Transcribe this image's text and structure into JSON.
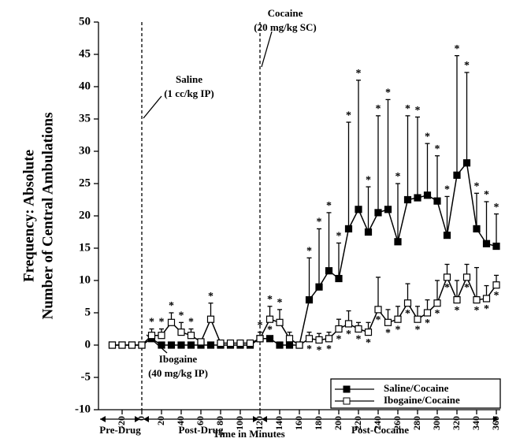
{
  "chart_data": {
    "type": "line",
    "ylabel": [
      "Frequency: Absolute",
      "Number of Central Ambulations"
    ],
    "xlabel": "Time in Minutes",
    "x": [
      -30,
      -20,
      -10,
      0,
      10,
      20,
      30,
      40,
      50,
      60,
      70,
      80,
      90,
      100,
      110,
      120,
      130,
      140,
      150,
      160,
      170,
      180,
      190,
      200,
      210,
      220,
      230,
      240,
      250,
      260,
      270,
      280,
      290,
      300,
      310,
      320,
      330,
      340,
      350,
      360
    ],
    "xlim": [
      -44,
      364
    ],
    "xticks": [
      -20,
      0,
      20,
      40,
      60,
      80,
      100,
      120,
      140,
      160,
      180,
      200,
      220,
      240,
      260,
      280,
      300,
      320,
      340,
      360
    ],
    "ylim": [
      -10,
      50
    ],
    "yticks": [
      -10,
      -5,
      0,
      5,
      10,
      15,
      20,
      25,
      30,
      35,
      40,
      45,
      50
    ],
    "vlines": [
      0,
      120
    ],
    "legend": "lower right",
    "series": [
      {
        "name": "Saline/Cocaine",
        "color": "#000000",
        "marker": "filled",
        "values": [
          0,
          0,
          0,
          0,
          1,
          0,
          0,
          0,
          0,
          0,
          0,
          0,
          0,
          0,
          0,
          1,
          1,
          0,
          0,
          0,
          7,
          9,
          11.5,
          10.3,
          18,
          21,
          17.5,
          20.5,
          21,
          16,
          22.5,
          22.8,
          23.2,
          22.3,
          17,
          26.3,
          28.2,
          18,
          15.7,
          15.3
        ],
        "errors": [
          null,
          null,
          null,
          null,
          null,
          null,
          null,
          null,
          null,
          null,
          null,
          null,
          null,
          null,
          null,
          null,
          null,
          null,
          null,
          null,
          6.5,
          9,
          9,
          5.5,
          16.5,
          20,
          7,
          15,
          17,
          9,
          13,
          12.5,
          8,
          7,
          6,
          18.5,
          14,
          5.5,
          6.5,
          5
        ],
        "markers_above": [
          null,
          null,
          null,
          null,
          null,
          null,
          null,
          null,
          null,
          null,
          null,
          null,
          null,
          null,
          null,
          null,
          null,
          null,
          null,
          null,
          "*",
          "*",
          "*",
          "*",
          "*",
          "*",
          "*",
          "*",
          "*",
          "*",
          "*",
          "*",
          "*",
          "*",
          "*",
          "*",
          "*",
          "*",
          "*",
          "*"
        ],
        "markers_below": [
          null,
          null,
          null,
          null,
          null,
          null,
          null,
          null,
          null,
          null,
          null,
          null,
          null,
          null,
          null,
          null,
          null,
          null,
          null,
          null,
          null,
          null,
          null,
          null,
          null,
          null,
          null,
          null,
          null,
          null,
          null,
          null,
          null,
          null,
          null,
          null,
          null,
          null,
          null,
          null
        ]
      },
      {
        "name": "Ibogaine/Cocaine",
        "color": "#000000",
        "marker": "open",
        "values": [
          0,
          0,
          0,
          0,
          1.5,
          1.5,
          3.5,
          2,
          1.5,
          0.5,
          4,
          0.3,
          0.3,
          0.3,
          0.3,
          1,
          4,
          3.5,
          1,
          0,
          1,
          0.8,
          1,
          2.5,
          3.3,
          2.5,
          2,
          5.5,
          3.5,
          4,
          6.5,
          4,
          5,
          6.5,
          10.5,
          7,
          10.5,
          7,
          7.2,
          9.3
        ],
        "errors": [
          null,
          null,
          null,
          null,
          1,
          1,
          1.5,
          1.5,
          1,
          null,
          2.5,
          null,
          null,
          null,
          null,
          1,
          2,
          2,
          1,
          null,
          1,
          1,
          1,
          1.5,
          2,
          1,
          1.5,
          5,
          2,
          2,
          3,
          2,
          2,
          3.5,
          2,
          3,
          2,
          5,
          2,
          1.5
        ],
        "markers_above": [
          null,
          null,
          null,
          null,
          "*",
          "*",
          "*",
          "*",
          "*",
          null,
          "*",
          null,
          null,
          null,
          null,
          "*",
          "*",
          "*",
          null,
          null,
          null,
          null,
          null,
          null,
          null,
          null,
          null,
          null,
          null,
          null,
          null,
          null,
          null,
          null,
          null,
          null,
          null,
          null,
          null,
          null
        ],
        "markers_below": [
          null,
          null,
          null,
          null,
          null,
          null,
          null,
          null,
          null,
          null,
          null,
          null,
          null,
          null,
          null,
          null,
          "*",
          null,
          null,
          null,
          "*",
          "*",
          "*",
          "*",
          "*",
          "*",
          "*",
          "*",
          "*",
          "*",
          "*",
          "*",
          "*",
          "*",
          "*",
          "*",
          "*",
          "*",
          "*",
          "*"
        ]
      }
    ],
    "annotations": [
      [
        "Saline",
        "(1 cc/kg IP)"
      ],
      [
        "Cocaine",
        "(20 mg/kg SC)"
      ],
      [
        "Ibogaine",
        "(40 mg/kg IP)"
      ]
    ],
    "phases": [
      {
        "label": "Pre-Drug",
        "range": [
          -44,
          0
        ]
      },
      {
        "label": "Post-Drug",
        "range": [
          0,
          120
        ]
      },
      {
        "label": "Post-Cocaine",
        "range": [
          120,
          364
        ]
      }
    ]
  }
}
